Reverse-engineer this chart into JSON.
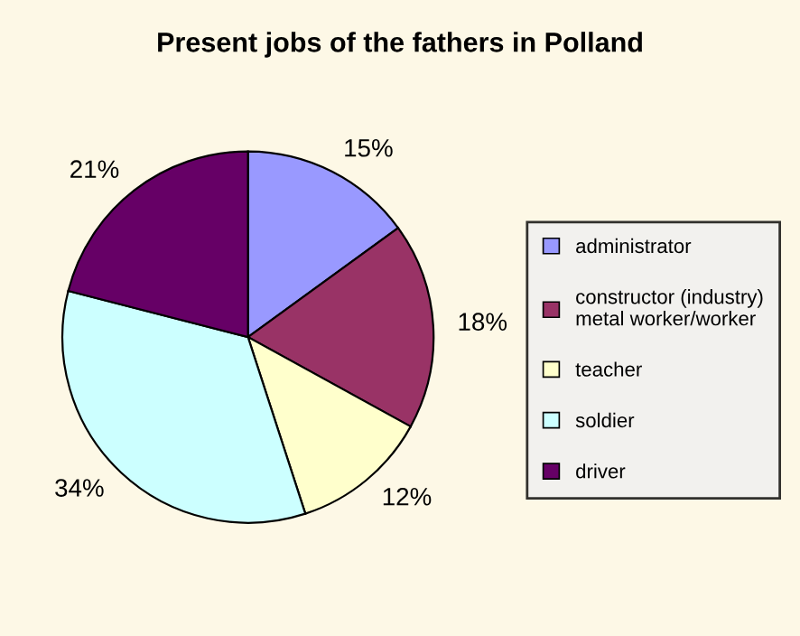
{
  "chart_data": {
    "type": "pie",
    "title": "Present jobs of the fathers in Polland",
    "categories": [
      "administrator",
      "constructor (industry)\nmetal worker/worker",
      "teacher",
      "soldier",
      "driver"
    ],
    "values": [
      15,
      18,
      12,
      34,
      21
    ],
    "colors": [
      "#9999ff",
      "#993366",
      "#ffffcc",
      "#ccffff",
      "#660066"
    ],
    "value_labels": [
      "15%",
      "18%",
      "12%",
      "34%",
      "21%"
    ],
    "legend": "right"
  }
}
